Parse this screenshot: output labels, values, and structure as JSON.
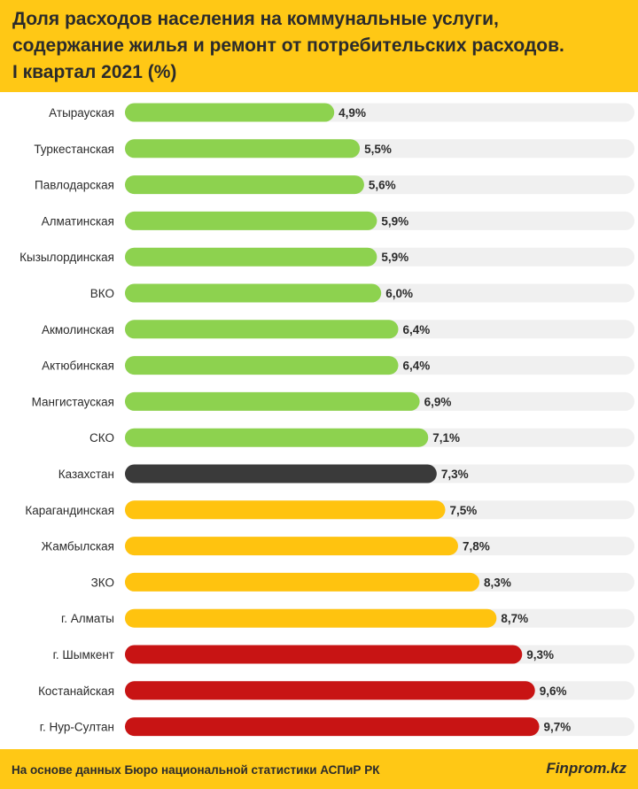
{
  "header": {
    "title_lines": [
      "Доля расходов населения на коммунальные услуги,",
      "содержание жилья и ремонт от потребительских расходов.",
      "I квартал 2021 (%)"
    ]
  },
  "chart_data": {
    "type": "bar",
    "orientation": "horizontal",
    "categories": [
      "Атырауская",
      "Туркестанская",
      "Павлодарская",
      "Алматинская",
      "Кызылординская",
      "ВКО",
      "Акмолинская",
      "Актюбинская",
      "Мангистауская",
      "СКО",
      "Казахстан",
      "Карагандинская",
      "Жамбылская",
      "ЗКО",
      "г. Алматы",
      "г. Шымкент",
      "Костанайская",
      "г. Нур-Султан"
    ],
    "values": [
      4.9,
      5.5,
      5.6,
      5.9,
      5.9,
      6.0,
      6.4,
      6.4,
      6.9,
      7.1,
      7.3,
      7.5,
      7.8,
      8.3,
      8.7,
      9.3,
      9.6,
      9.7
    ],
    "value_labels": [
      "4,9%",
      "5,5%",
      "5,6%",
      "5,9%",
      "5,9%",
      "6,0%",
      "6,4%",
      "6,4%",
      "6,9%",
      "7,1%",
      "7,3%",
      "7,5%",
      "7,8%",
      "8,3%",
      "8,7%",
      "9,3%",
      "9,6%",
      "9,7%"
    ],
    "color_groups": [
      "green",
      "green",
      "green",
      "green",
      "green",
      "green",
      "green",
      "green",
      "green",
      "green",
      "dark",
      "yellow",
      "yellow",
      "yellow",
      "yellow",
      "red",
      "red",
      "red"
    ],
    "xlim": [
      0,
      12
    ],
    "grid": false,
    "legend": "none"
  },
  "colors": {
    "green": "#8dd24f",
    "dark": "#3a3a3a",
    "yellow": "#ffc30f",
    "red": "#c81414",
    "track": "#f0f0f0",
    "header_bg": "#ffc815",
    "text": "#2b2b2b"
  },
  "footer": {
    "source": "На основе данных Бюро национальной статистики АСПиР РК",
    "brand": "Finprom.kz"
  }
}
